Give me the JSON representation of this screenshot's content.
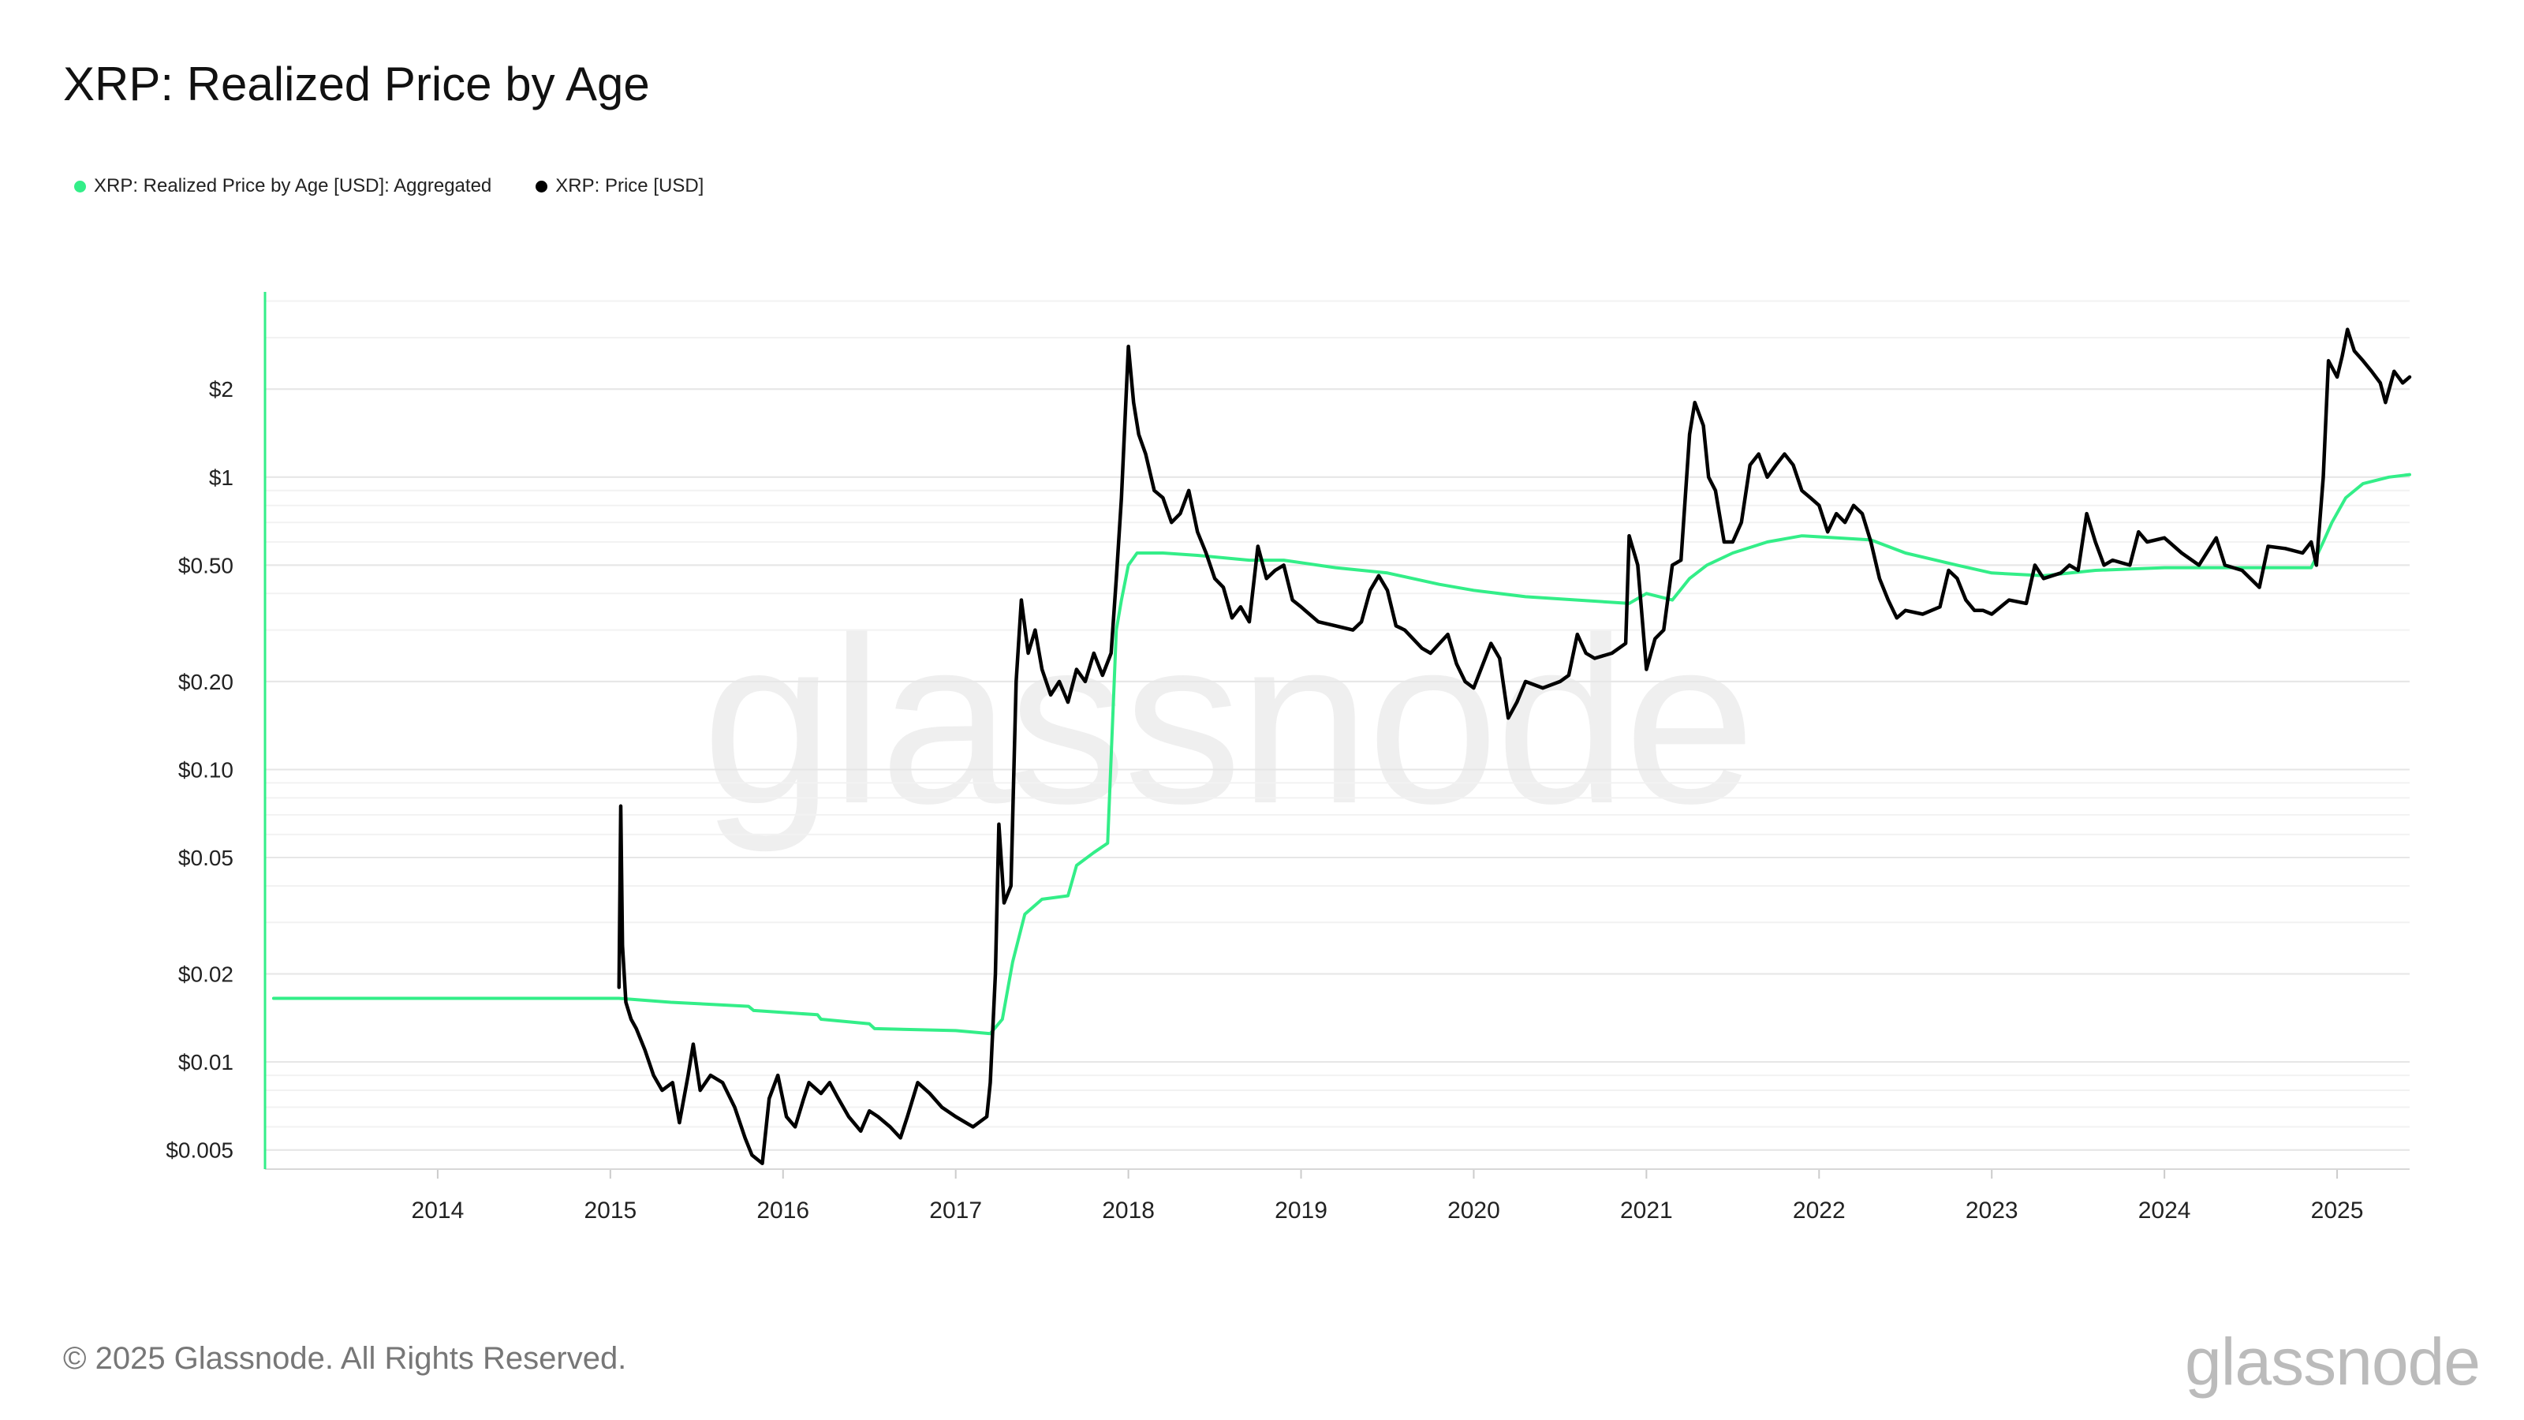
{
  "title": "XRP: Realized Price by Age",
  "footer": "© 2025 Glassnode. All Rights Reserved.",
  "logo": "glassnode",
  "watermark": "glassnode",
  "colors": {
    "realized": "#33ee88",
    "price": "#000000",
    "grid": "#ececec",
    "axis": "#33ee88"
  },
  "chart_data": {
    "type": "line",
    "title": "XRP: Realized Price by Age",
    "yscale": "log",
    "x_range": [
      2013.0,
      2025.42
    ],
    "ylim": [
      0.0043,
      4.3
    ],
    "grid": true,
    "legend_position": "top-left",
    "y_ticks": [
      {
        "value": 2,
        "label": "$2"
      },
      {
        "value": 1,
        "label": "$1"
      },
      {
        "value": 0.5,
        "label": "$0.50"
      },
      {
        "value": 0.2,
        "label": "$0.20"
      },
      {
        "value": 0.1,
        "label": "$0.10"
      },
      {
        "value": 0.05,
        "label": "$0.05"
      },
      {
        "value": 0.02,
        "label": "$0.02"
      },
      {
        "value": 0.01,
        "label": "$0.01"
      },
      {
        "value": 0.005,
        "label": "$0.005"
      }
    ],
    "x_ticks": [
      "2014",
      "2015",
      "2016",
      "2017",
      "2018",
      "2019",
      "2020",
      "2021",
      "2022",
      "2023",
      "2024",
      "2025"
    ],
    "series": [
      {
        "name": "XRP: Realized Price by Age [USD]: Aggregated",
        "color": "#33ee88",
        "points": [
          [
            2013.05,
            0.0165
          ],
          [
            2015.05,
            0.0165
          ],
          [
            2015.35,
            0.016
          ],
          [
            2015.8,
            0.0155
          ],
          [
            2015.83,
            0.015
          ],
          [
            2016.2,
            0.0145
          ],
          [
            2016.22,
            0.014
          ],
          [
            2016.5,
            0.0135
          ],
          [
            2016.53,
            0.013
          ],
          [
            2017.0,
            0.0128
          ],
          [
            2017.2,
            0.0125
          ],
          [
            2017.27,
            0.014
          ],
          [
            2017.33,
            0.022
          ],
          [
            2017.4,
            0.032
          ],
          [
            2017.5,
            0.036
          ],
          [
            2017.65,
            0.037
          ],
          [
            2017.7,
            0.047
          ],
          [
            2017.8,
            0.052
          ],
          [
            2017.88,
            0.056
          ],
          [
            2017.93,
            0.3
          ],
          [
            2017.96,
            0.38
          ],
          [
            2018.0,
            0.5
          ],
          [
            2018.05,
            0.55
          ],
          [
            2018.2,
            0.55
          ],
          [
            2018.4,
            0.54
          ],
          [
            2018.7,
            0.52
          ],
          [
            2018.9,
            0.52
          ],
          [
            2019.2,
            0.49
          ],
          [
            2019.5,
            0.47
          ],
          [
            2019.8,
            0.43
          ],
          [
            2020.0,
            0.41
          ],
          [
            2020.3,
            0.39
          ],
          [
            2020.6,
            0.38
          ],
          [
            2020.9,
            0.37
          ],
          [
            2021.0,
            0.4
          ],
          [
            2021.15,
            0.38
          ],
          [
            2021.25,
            0.45
          ],
          [
            2021.35,
            0.5
          ],
          [
            2021.5,
            0.55
          ],
          [
            2021.7,
            0.6
          ],
          [
            2021.9,
            0.63
          ],
          [
            2022.1,
            0.62
          ],
          [
            2022.3,
            0.61
          ],
          [
            2022.5,
            0.55
          ],
          [
            2022.8,
            0.5
          ],
          [
            2023.0,
            0.47
          ],
          [
            2023.3,
            0.46
          ],
          [
            2023.6,
            0.48
          ],
          [
            2024.0,
            0.49
          ],
          [
            2024.3,
            0.49
          ],
          [
            2024.6,
            0.49
          ],
          [
            2024.85,
            0.49
          ],
          [
            2024.92,
            0.6
          ],
          [
            2024.97,
            0.7
          ],
          [
            2025.05,
            0.85
          ],
          [
            2025.15,
            0.95
          ],
          [
            2025.3,
            1.0
          ],
          [
            2025.42,
            1.02
          ]
        ]
      },
      {
        "name": "XRP: Price [USD]",
        "color": "#000000",
        "points": [
          [
            2015.05,
            0.018
          ],
          [
            2015.06,
            0.075
          ],
          [
            2015.07,
            0.025
          ],
          [
            2015.09,
            0.016
          ],
          [
            2015.12,
            0.014
          ],
          [
            2015.15,
            0.013
          ],
          [
            2015.2,
            0.011
          ],
          [
            2015.25,
            0.009
          ],
          [
            2015.3,
            0.008
          ],
          [
            2015.36,
            0.0085
          ],
          [
            2015.4,
            0.0062
          ],
          [
            2015.45,
            0.009
          ],
          [
            2015.48,
            0.0115
          ],
          [
            2015.52,
            0.008
          ],
          [
            2015.58,
            0.009
          ],
          [
            2015.65,
            0.0085
          ],
          [
            2015.72,
            0.007
          ],
          [
            2015.78,
            0.0055
          ],
          [
            2015.82,
            0.0048
          ],
          [
            2015.88,
            0.0045
          ],
          [
            2015.92,
            0.0075
          ],
          [
            2015.97,
            0.009
          ],
          [
            2016.02,
            0.0065
          ],
          [
            2016.07,
            0.006
          ],
          [
            2016.12,
            0.0075
          ],
          [
            2016.15,
            0.0085
          ],
          [
            2016.22,
            0.0078
          ],
          [
            2016.27,
            0.0085
          ],
          [
            2016.32,
            0.0075
          ],
          [
            2016.38,
            0.0065
          ],
          [
            2016.45,
            0.0058
          ],
          [
            2016.5,
            0.0068
          ],
          [
            2016.55,
            0.0065
          ],
          [
            2016.62,
            0.006
          ],
          [
            2016.68,
            0.0055
          ],
          [
            2016.72,
            0.0065
          ],
          [
            2016.78,
            0.0085
          ],
          [
            2016.85,
            0.0078
          ],
          [
            2016.92,
            0.007
          ],
          [
            2017.0,
            0.0065
          ],
          [
            2017.1,
            0.006
          ],
          [
            2017.18,
            0.0065
          ],
          [
            2017.2,
            0.0085
          ],
          [
            2017.23,
            0.02
          ],
          [
            2017.25,
            0.065
          ],
          [
            2017.28,
            0.035
          ],
          [
            2017.32,
            0.04
          ],
          [
            2017.35,
            0.2
          ],
          [
            2017.38,
            0.38
          ],
          [
            2017.42,
            0.25
          ],
          [
            2017.46,
            0.3
          ],
          [
            2017.5,
            0.22
          ],
          [
            2017.55,
            0.18
          ],
          [
            2017.6,
            0.2
          ],
          [
            2017.65,
            0.17
          ],
          [
            2017.7,
            0.22
          ],
          [
            2017.75,
            0.2
          ],
          [
            2017.8,
            0.25
          ],
          [
            2017.85,
            0.21
          ],
          [
            2017.9,
            0.25
          ],
          [
            2017.93,
            0.45
          ],
          [
            2017.96,
            0.85
          ],
          [
            2018.0,
            2.8
          ],
          [
            2018.03,
            1.8
          ],
          [
            2018.06,
            1.4
          ],
          [
            2018.1,
            1.2
          ],
          [
            2018.15,
            0.9
          ],
          [
            2018.2,
            0.85
          ],
          [
            2018.25,
            0.7
          ],
          [
            2018.3,
            0.75
          ],
          [
            2018.35,
            0.9
          ],
          [
            2018.4,
            0.65
          ],
          [
            2018.45,
            0.55
          ],
          [
            2018.5,
            0.45
          ],
          [
            2018.55,
            0.42
          ],
          [
            2018.6,
            0.33
          ],
          [
            2018.65,
            0.36
          ],
          [
            2018.7,
            0.32
          ],
          [
            2018.75,
            0.58
          ],
          [
            2018.8,
            0.45
          ],
          [
            2018.85,
            0.48
          ],
          [
            2018.9,
            0.5
          ],
          [
            2018.95,
            0.38
          ],
          [
            2019.0,
            0.36
          ],
          [
            2019.1,
            0.32
          ],
          [
            2019.2,
            0.31
          ],
          [
            2019.3,
            0.3
          ],
          [
            2019.35,
            0.32
          ],
          [
            2019.4,
            0.41
          ],
          [
            2019.45,
            0.46
          ],
          [
            2019.5,
            0.41
          ],
          [
            2019.55,
            0.31
          ],
          [
            2019.6,
            0.3
          ],
          [
            2019.7,
            0.26
          ],
          [
            2019.75,
            0.25
          ],
          [
            2019.85,
            0.29
          ],
          [
            2019.9,
            0.23
          ],
          [
            2019.95,
            0.2
          ],
          [
            2020.0,
            0.19
          ],
          [
            2020.1,
            0.27
          ],
          [
            2020.15,
            0.24
          ],
          [
            2020.2,
            0.15
          ],
          [
            2020.25,
            0.17
          ],
          [
            2020.3,
            0.2
          ],
          [
            2020.4,
            0.19
          ],
          [
            2020.5,
            0.2
          ],
          [
            2020.55,
            0.21
          ],
          [
            2020.6,
            0.29
          ],
          [
            2020.65,
            0.25
          ],
          [
            2020.7,
            0.24
          ],
          [
            2020.8,
            0.25
          ],
          [
            2020.88,
            0.27
          ],
          [
            2020.9,
            0.63
          ],
          [
            2020.95,
            0.5
          ],
          [
            2021.0,
            0.22
          ],
          [
            2021.05,
            0.28
          ],
          [
            2021.1,
            0.3
          ],
          [
            2021.15,
            0.5
          ],
          [
            2021.2,
            0.52
          ],
          [
            2021.25,
            1.4
          ],
          [
            2021.28,
            1.8
          ],
          [
            2021.33,
            1.5
          ],
          [
            2021.36,
            1.0
          ],
          [
            2021.4,
            0.9
          ],
          [
            2021.45,
            0.6
          ],
          [
            2021.5,
            0.6
          ],
          [
            2021.55,
            0.7
          ],
          [
            2021.6,
            1.1
          ],
          [
            2021.65,
            1.2
          ],
          [
            2021.7,
            1.0
          ],
          [
            2021.75,
            1.1
          ],
          [
            2021.8,
            1.2
          ],
          [
            2021.85,
            1.1
          ],
          [
            2021.9,
            0.9
          ],
          [
            2021.95,
            0.85
          ],
          [
            2022.0,
            0.8
          ],
          [
            2022.05,
            0.65
          ],
          [
            2022.1,
            0.75
          ],
          [
            2022.15,
            0.7
          ],
          [
            2022.2,
            0.8
          ],
          [
            2022.25,
            0.75
          ],
          [
            2022.3,
            0.6
          ],
          [
            2022.35,
            0.45
          ],
          [
            2022.4,
            0.38
          ],
          [
            2022.45,
            0.33
          ],
          [
            2022.5,
            0.35
          ],
          [
            2022.6,
            0.34
          ],
          [
            2022.7,
            0.36
          ],
          [
            2022.75,
            0.48
          ],
          [
            2022.8,
            0.45
          ],
          [
            2022.85,
            0.38
          ],
          [
            2022.9,
            0.35
          ],
          [
            2022.95,
            0.35
          ],
          [
            2023.0,
            0.34
          ],
          [
            2023.1,
            0.38
          ],
          [
            2023.2,
            0.37
          ],
          [
            2023.25,
            0.5
          ],
          [
            2023.3,
            0.45
          ],
          [
            2023.4,
            0.47
          ],
          [
            2023.45,
            0.5
          ],
          [
            2023.5,
            0.48
          ],
          [
            2023.55,
            0.75
          ],
          [
            2023.6,
            0.6
          ],
          [
            2023.65,
            0.5
          ],
          [
            2023.7,
            0.52
          ],
          [
            2023.8,
            0.5
          ],
          [
            2023.85,
            0.65
          ],
          [
            2023.9,
            0.6
          ],
          [
            2024.0,
            0.62
          ],
          [
            2024.1,
            0.55
          ],
          [
            2024.2,
            0.5
          ],
          [
            2024.3,
            0.62
          ],
          [
            2024.35,
            0.5
          ],
          [
            2024.45,
            0.48
          ],
          [
            2024.55,
            0.42
          ],
          [
            2024.6,
            0.58
          ],
          [
            2024.7,
            0.57
          ],
          [
            2024.8,
            0.55
          ],
          [
            2024.85,
            0.6
          ],
          [
            2024.88,
            0.5
          ],
          [
            2024.92,
            1.0
          ],
          [
            2024.95,
            2.5
          ],
          [
            2025.0,
            2.2
          ],
          [
            2025.03,
            2.6
          ],
          [
            2025.06,
            3.2
          ],
          [
            2025.1,
            2.7
          ],
          [
            2025.15,
            2.5
          ],
          [
            2025.2,
            2.3
          ],
          [
            2025.25,
            2.1
          ],
          [
            2025.28,
            1.8
          ],
          [
            2025.33,
            2.3
          ],
          [
            2025.38,
            2.1
          ],
          [
            2025.42,
            2.2
          ]
        ]
      }
    ]
  }
}
